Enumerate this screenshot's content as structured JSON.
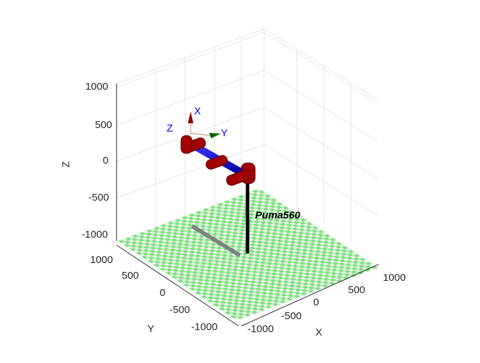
{
  "figure": {
    "robot_name": "Puma560",
    "axes": {
      "x": {
        "label": "X",
        "ticks": [
          -1000,
          -500,
          0,
          500,
          1000
        ]
      },
      "y": {
        "label": "Y",
        "ticks": [
          1000,
          500,
          0,
          -500,
          -1000
        ]
      },
      "z": {
        "label": "Z",
        "ticks": [
          1000,
          500,
          0,
          -500,
          -1000
        ]
      }
    },
    "frame_labels": {
      "x": "X",
      "y": "Y",
      "z": "Z"
    }
  }
}
